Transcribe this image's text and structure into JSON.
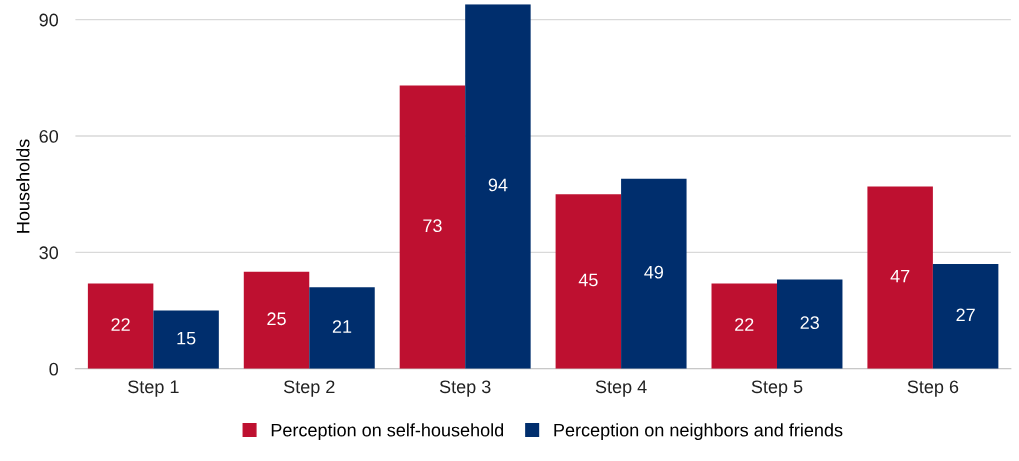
{
  "chart_data": {
    "type": "bar",
    "ylabel": "Households",
    "categories": [
      "Step 1",
      "Step 2",
      "Step 3",
      "Step 4",
      "Step 5",
      "Step 6"
    ],
    "series": [
      {
        "name": "Perception on self-household",
        "color": "#be1030",
        "values": [
          22,
          25,
          73,
          45,
          22,
          47
        ]
      },
      {
        "name": "Perception on neighbors and friends",
        "color": "#002e6d",
        "values": [
          15,
          21,
          94,
          49,
          23,
          27
        ]
      }
    ],
    "ylim": [
      0,
      94
    ],
    "yticks": [
      0,
      30,
      60,
      90
    ],
    "grid": "y",
    "legend": "bottom",
    "data_labels": true
  }
}
